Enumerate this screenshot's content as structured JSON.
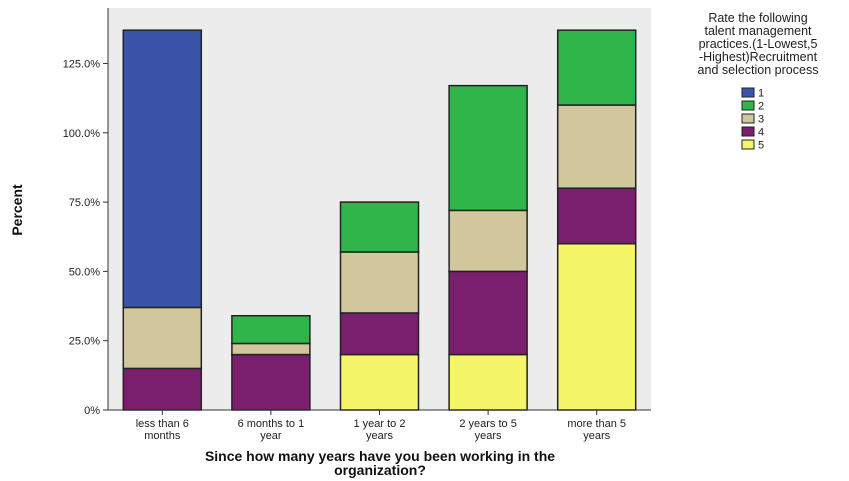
{
  "chart_data": {
    "type": "bar",
    "stacked": true,
    "xlabel": "Since how many years have you been working in the organization?",
    "ylabel": "Percent",
    "ylim": [
      0,
      145
    ],
    "yticks": [
      "0%",
      "25.0%",
      "50.0%",
      "75.0%",
      "100.0%",
      "125.0%"
    ],
    "ytick_values": [
      0,
      25,
      50,
      75,
      100,
      125
    ],
    "grid": false,
    "legend_position": "right",
    "legend_title": "Rate the following talent management practices.(1-Lowest,5 -Highest)Recruitment and selection process",
    "categories": [
      "less than 6 months",
      "6 months to 1 year",
      "1 year to 2 years",
      "2 years to 5 years",
      "more than 5 years"
    ],
    "series": [
      {
        "name": "5",
        "color": "#f5f56a",
        "values": [
          0,
          0,
          20,
          20,
          60
        ]
      },
      {
        "name": "4",
        "color": "#7a1f6e",
        "values": [
          15,
          20,
          15,
          30,
          20
        ]
      },
      {
        "name": "3",
        "color": "#d2c79c",
        "values": [
          22,
          4,
          22,
          22,
          30
        ]
      },
      {
        "name": "2",
        "color": "#2fb54a",
        "values": [
          0,
          10,
          18,
          45,
          27
        ]
      },
      {
        "name": "1",
        "color": "#3a55a8",
        "values": [
          100,
          0,
          0,
          0,
          0
        ]
      }
    ],
    "legend_order": [
      "1",
      "2",
      "3",
      "4",
      "5"
    ]
  },
  "colors": {
    "plot_background": "#ececec",
    "bar_outline": "#222222"
  }
}
